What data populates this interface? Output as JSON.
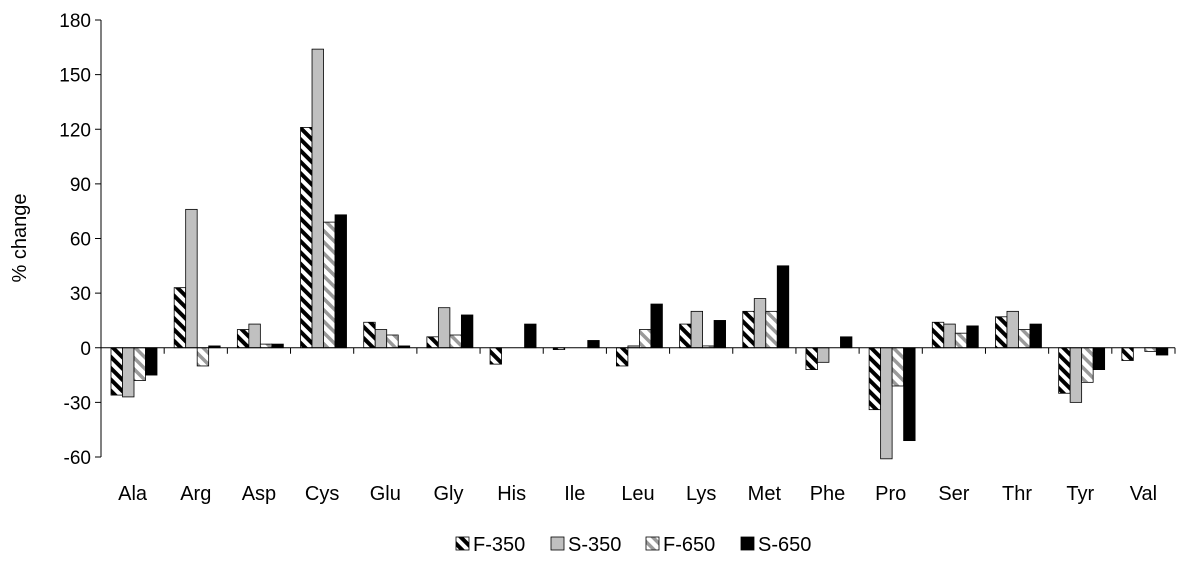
{
  "chart_data": {
    "type": "bar",
    "title": "",
    "xlabel": "",
    "ylabel": "% change",
    "ylim": [
      -60,
      180
    ],
    "yticks": [
      -60,
      -30,
      0,
      30,
      60,
      90,
      120,
      150,
      180
    ],
    "grid": false,
    "legend_position": "bottom",
    "categories": [
      "Ala",
      "Arg",
      "Asp",
      "Cys",
      "Glu",
      "Gly",
      "His",
      "Ile",
      "Leu",
      "Lys",
      "Met",
      "Phe",
      "Pro",
      "Ser",
      "Thr",
      "Tyr",
      "Val"
    ],
    "series": [
      {
        "name": "F-350",
        "pattern": "hatch-black",
        "values": [
          -26,
          33,
          10,
          121,
          14,
          6,
          -9,
          -1,
          -10,
          13,
          20,
          -12,
          -34,
          14,
          17,
          -25,
          -7
        ]
      },
      {
        "name": "S-350",
        "pattern": "solid-gray",
        "values": [
          -27,
          76,
          13,
          164,
          10,
          22,
          0,
          0,
          1,
          20,
          27,
          -8,
          -61,
          13,
          20,
          -30,
          0
        ]
      },
      {
        "name": "F-650",
        "pattern": "hatch-gray",
        "values": [
          -18,
          -10,
          2,
          69,
          7,
          7,
          0,
          0,
          10,
          1,
          20,
          0,
          -21,
          8,
          10,
          -19,
          -2
        ]
      },
      {
        "name": "S-650",
        "pattern": "solid-black",
        "values": [
          -15,
          1,
          2,
          73,
          1,
          18,
          13,
          4,
          24,
          15,
          45,
          6,
          -51,
          12,
          13,
          -12,
          -4
        ]
      }
    ],
    "colors": {
      "gray": "#c0c0c0",
      "black": "#000000",
      "hatch_gray": "#9a9a9a"
    }
  }
}
